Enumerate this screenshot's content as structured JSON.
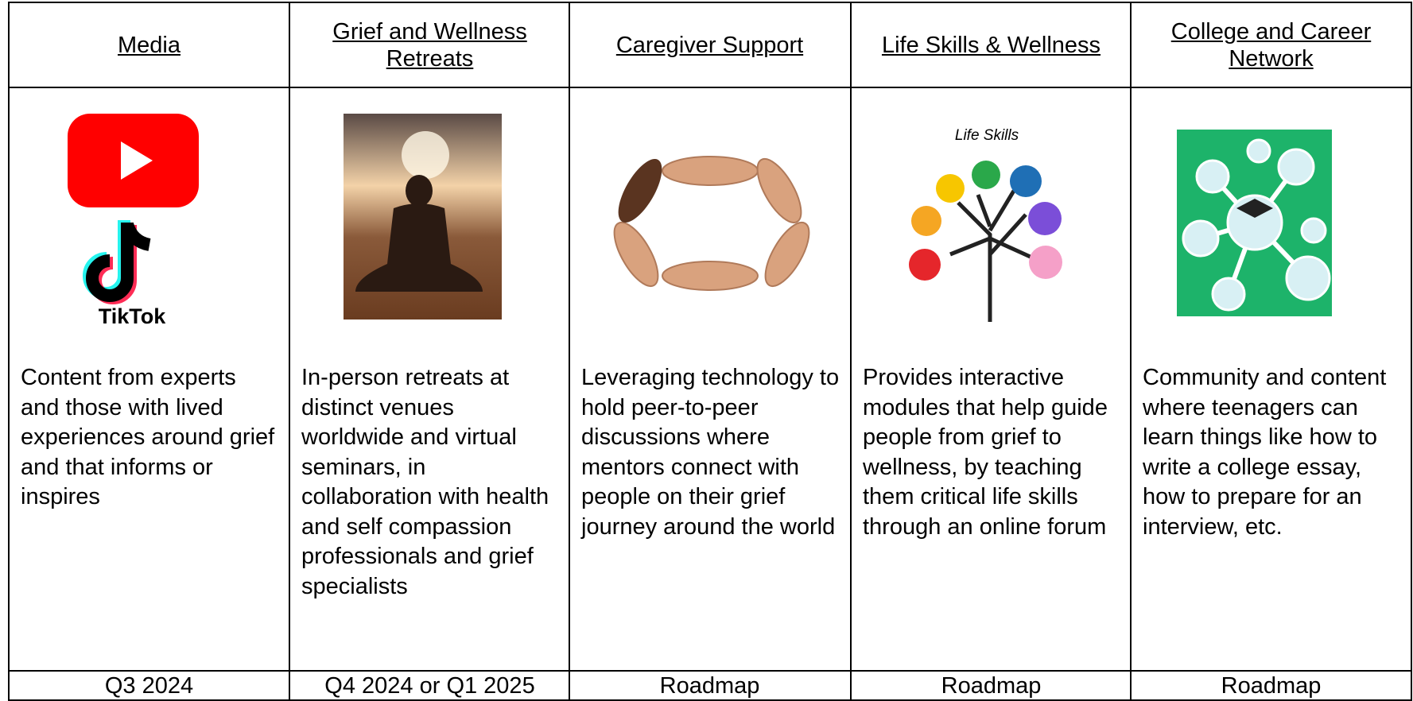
{
  "columns": [
    {
      "title": "Media",
      "image_label": "TikTok",
      "description": "Content from experts and those with lived experiences around grief and that informs or inspires",
      "timing": "Q3 2024"
    },
    {
      "title": "Grief and Wellness Retreats",
      "description": "In-person retreats at distinct venues worldwide and virtual seminars, in collaboration with health and self compassion professionals and grief specialists",
      "timing": "Q4 2024 or Q1 2025"
    },
    {
      "title": "Caregiver Support",
      "description": "Leveraging technology to hold peer-to-peer discussions where mentors connect with people on their grief journey around the world",
      "timing": "Roadmap"
    },
    {
      "title": "Life Skills & Wellness",
      "image_label": "Life Skills",
      "description": "Provides interactive modules that help guide people from grief to wellness, by teaching them critical life skills through an online forum",
      "timing": "Roadmap"
    },
    {
      "title": "College and Career Network",
      "description": "Community and content where teenagers can learn things like how to write a college essay, how to prepare for an interview, etc.",
      "timing": "Roadmap"
    }
  ]
}
